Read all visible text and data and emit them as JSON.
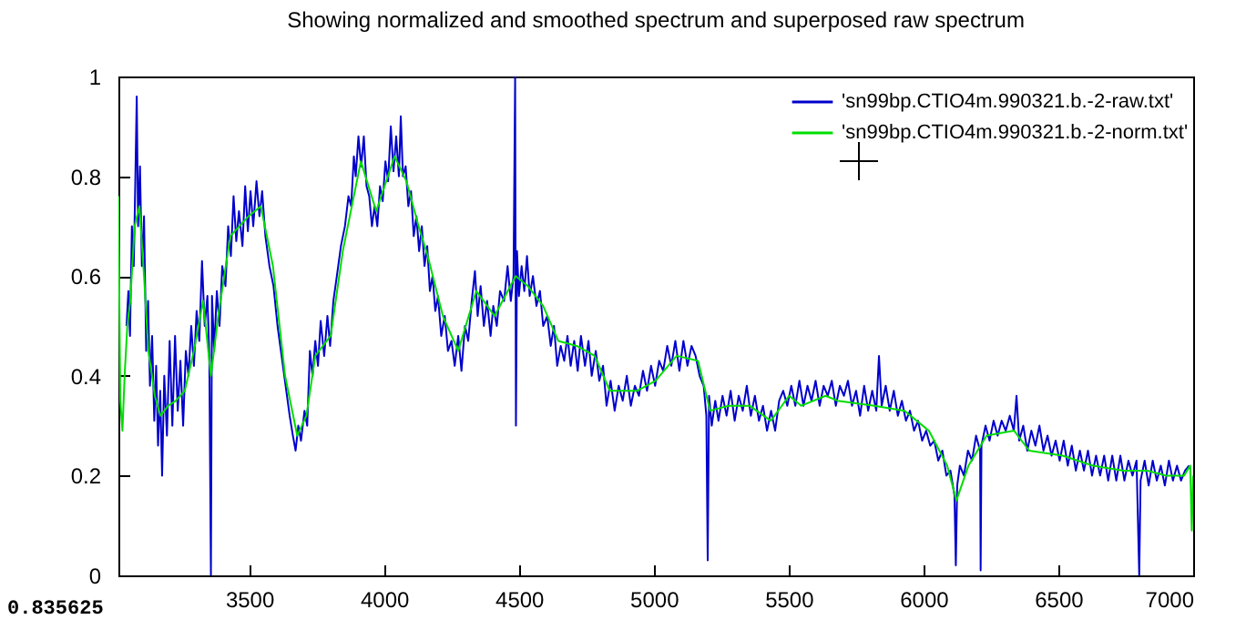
{
  "chart_data": {
    "type": "line",
    "title": "Showing normalized and smoothed spectrum and superposed raw spectrum",
    "xlim": [
      3015,
      7000
    ],
    "xticks": [
      3500,
      4000,
      4500,
      5000,
      5500,
      6000,
      6500,
      7000
    ],
    "ylim": [
      0,
      1
    ],
    "yticks": [
      0,
      0.2,
      0.4,
      0.6,
      0.8,
      1
    ],
    "grid": false,
    "legend": "top right",
    "annotations": [
      "0.835625"
    ],
    "series": [
      {
        "name": "'sn99bp.CTIO4m.990321.b.-2-raw.txt'",
        "color": "#0000cc",
        "x": [
          3045,
          3052,
          3058,
          3065,
          3072,
          3078,
          3083,
          3088,
          3095,
          3102,
          3110,
          3118,
          3125,
          3132,
          3140,
          3148,
          3155,
          3162,
          3170,
          3177,
          3185,
          3195,
          3205,
          3215,
          3225,
          3235,
          3245,
          3255,
          3265,
          3275,
          3285,
          3295,
          3305,
          3315,
          3325,
          3335,
          3345,
          3352,
          3358,
          3362,
          3370,
          3380,
          3390,
          3400,
          3412,
          3422,
          3432,
          3442,
          3452,
          3462,
          3475,
          3485,
          3495,
          3505,
          3515,
          3527,
          3538,
          3548,
          3560,
          3575,
          3590,
          3605,
          3620,
          3635,
          3650,
          3662,
          3672,
          3682,
          3692,
          3705,
          3715,
          3725,
          3735,
          3745,
          3755,
          3765,
          3778,
          3790,
          3800,
          3812,
          3825,
          3840,
          3855,
          3868,
          3878,
          3888,
          3895,
          3905,
          3915,
          3925,
          3935,
          3945,
          3955,
          3965,
          3975,
          3985,
          3995,
          4005,
          4015,
          4025,
          4035,
          4045,
          4055,
          4062,
          4070,
          4080,
          4090,
          4100,
          4110,
          4120,
          4130,
          4140,
          4150,
          4160,
          4170,
          4180,
          4190,
          4200,
          4212,
          4225,
          4237,
          4250,
          4262,
          4275,
          4287,
          4300,
          4312,
          4325,
          4337,
          4347,
          4358,
          4370,
          4382,
          4395,
          4405,
          4418,
          4430,
          4445,
          4458,
          4470,
          4480,
          4486,
          4489,
          4493,
          4500,
          4510,
          4520,
          4530,
          4540,
          4552,
          4565,
          4578,
          4590,
          4605,
          4618,
          4630,
          4642,
          4655,
          4668,
          4680,
          4692,
          4705,
          4718,
          4730,
          4745,
          4758,
          4770,
          4785,
          4798,
          4812,
          4825,
          4840,
          4855,
          4870,
          4885,
          4900,
          4915,
          4930,
          4945,
          4960,
          4975,
          4990,
          5005,
          5020,
          5035,
          5050,
          5065,
          5080,
          5095,
          5110,
          5125,
          5140,
          5155,
          5170,
          5185,
          5195,
          5200,
          5205,
          5215,
          5228,
          5240,
          5255,
          5270,
          5285,
          5300,
          5315,
          5330,
          5345,
          5360,
          5375,
          5390,
          5405,
          5420,
          5435,
          5450,
          5465,
          5480,
          5495,
          5510,
          5525,
          5540,
          5555,
          5570,
          5585,
          5600,
          5615,
          5630,
          5645,
          5660,
          5675,
          5690,
          5705,
          5720,
          5735,
          5750,
          5765,
          5780,
          5795,
          5810,
          5825,
          5835,
          5845,
          5860,
          5875,
          5890,
          5905,
          5920,
          5935,
          5950,
          5965,
          5980,
          5995,
          6010,
          6025,
          6040,
          6055,
          6070,
          6085,
          6100,
          6115,
          6120,
          6125,
          6135,
          6150,
          6165,
          6180,
          6195,
          6210,
          6212,
          6215,
          6230,
          6245,
          6260,
          6275,
          6290,
          6305,
          6320,
          6335,
          6345,
          6355,
          6370,
          6385,
          6400,
          6415,
          6430,
          6445,
          6460,
          6475,
          6490,
          6505,
          6520,
          6535,
          6550,
          6565,
          6580,
          6595,
          6610,
          6625,
          6640,
          6655,
          6670,
          6685,
          6700,
          6715,
          6730,
          6745,
          6760,
          6775,
          6790,
          6800,
          6805,
          6820,
          6835,
          6850,
          6865,
          6880,
          6895,
          6910,
          6925,
          6940,
          6955,
          6970,
          6985
        ],
        "values": [
          0.5,
          0.57,
          0.48,
          0.7,
          0.62,
          0.8,
          0.96,
          0.7,
          0.82,
          0.62,
          0.72,
          0.45,
          0.55,
          0.38,
          0.48,
          0.31,
          0.42,
          0.26,
          0.37,
          0.2,
          0.4,
          0.28,
          0.47,
          0.3,
          0.48,
          0.33,
          0.43,
          0.3,
          0.45,
          0.4,
          0.5,
          0.42,
          0.53,
          0.47,
          0.63,
          0.5,
          0.56,
          0.44,
          0.0,
          0.56,
          0.45,
          0.57,
          0.5,
          0.62,
          0.58,
          0.7,
          0.64,
          0.76,
          0.67,
          0.73,
          0.66,
          0.78,
          0.69,
          0.77,
          0.7,
          0.79,
          0.72,
          0.77,
          0.68,
          0.62,
          0.58,
          0.5,
          0.44,
          0.38,
          0.32,
          0.28,
          0.25,
          0.3,
          0.27,
          0.33,
          0.3,
          0.45,
          0.4,
          0.47,
          0.42,
          0.51,
          0.44,
          0.52,
          0.46,
          0.55,
          0.6,
          0.66,
          0.7,
          0.76,
          0.74,
          0.84,
          0.8,
          0.88,
          0.82,
          0.88,
          0.78,
          0.76,
          0.7,
          0.74,
          0.7,
          0.78,
          0.75,
          0.83,
          0.79,
          0.9,
          0.81,
          0.88,
          0.8,
          0.92,
          0.8,
          0.82,
          0.74,
          0.77,
          0.68,
          0.72,
          0.65,
          0.7,
          0.62,
          0.66,
          0.57,
          0.6,
          0.53,
          0.56,
          0.48,
          0.52,
          0.45,
          0.47,
          0.42,
          0.48,
          0.41,
          0.5,
          0.47,
          0.55,
          0.61,
          0.52,
          0.58,
          0.5,
          0.55,
          0.48,
          0.54,
          0.5,
          0.57,
          0.55,
          0.62,
          0.55,
          0.6,
          1.0,
          0.3,
          0.65,
          0.56,
          0.62,
          0.57,
          0.64,
          0.56,
          0.6,
          0.54,
          0.57,
          0.5,
          0.52,
          0.46,
          0.5,
          0.42,
          0.46,
          0.43,
          0.48,
          0.42,
          0.47,
          0.41,
          0.48,
          0.42,
          0.47,
          0.4,
          0.45,
          0.39,
          0.42,
          0.34,
          0.39,
          0.33,
          0.38,
          0.35,
          0.4,
          0.34,
          0.38,
          0.36,
          0.41,
          0.37,
          0.42,
          0.38,
          0.43,
          0.41,
          0.46,
          0.42,
          0.47,
          0.41,
          0.47,
          0.42,
          0.46,
          0.44,
          0.4,
          0.38,
          0.32,
          0.03,
          0.36,
          0.3,
          0.35,
          0.31,
          0.36,
          0.32,
          0.37,
          0.31,
          0.36,
          0.33,
          0.38,
          0.32,
          0.36,
          0.31,
          0.34,
          0.29,
          0.33,
          0.29,
          0.35,
          0.37,
          0.34,
          0.38,
          0.34,
          0.39,
          0.34,
          0.38,
          0.35,
          0.39,
          0.34,
          0.38,
          0.36,
          0.39,
          0.34,
          0.38,
          0.36,
          0.39,
          0.34,
          0.37,
          0.32,
          0.38,
          0.33,
          0.37,
          0.33,
          0.44,
          0.34,
          0.38,
          0.33,
          0.37,
          0.32,
          0.35,
          0.31,
          0.33,
          0.29,
          0.31,
          0.27,
          0.29,
          0.26,
          0.27,
          0.23,
          0.25,
          0.2,
          0.21,
          0.16,
          0.02,
          0.18,
          0.22,
          0.2,
          0.25,
          0.23,
          0.28,
          0.25,
          0.01,
          0.26,
          0.3,
          0.27,
          0.31,
          0.28,
          0.31,
          0.29,
          0.32,
          0.29,
          0.36,
          0.27,
          0.3,
          0.25,
          0.29,
          0.26,
          0.3,
          0.25,
          0.28,
          0.24,
          0.27,
          0.23,
          0.27,
          0.22,
          0.26,
          0.21,
          0.25,
          0.21,
          0.25,
          0.2,
          0.24,
          0.2,
          0.24,
          0.19,
          0.24,
          0.19,
          0.24,
          0.19,
          0.23,
          0.2,
          0.23,
          0.0,
          0.19,
          0.23,
          0.18,
          0.23,
          0.19,
          0.22,
          0.18,
          0.23,
          0.19,
          0.22,
          0.19,
          0.21,
          0.22
        ]
      },
      {
        "name": "'sn99bp.CTIO4m.990321.b.-2-norm.txt'",
        "color": "#00dd00",
        "x": [
          3015,
          3022,
          3030,
          3038,
          3048,
          3059,
          3075,
          3093,
          3110,
          3126,
          3150,
          3171,
          3200,
          3228,
          3261,
          3295,
          3329,
          3358,
          3385,
          3430,
          3498,
          3543,
          3588,
          3633,
          3678,
          3712,
          3745,
          3802,
          3847,
          3914,
          3971,
          4039,
          4083,
          4128,
          4162,
          4218,
          4275,
          4342,
          4410,
          4488,
          4533,
          4590,
          4646,
          4714,
          4781,
          4837,
          4939,
          5006,
          5085,
          5164,
          5209,
          5277,
          5355,
          5434,
          5502,
          5547,
          5637,
          5682,
          5818,
          5930,
          6020,
          6088,
          6122,
          6167,
          6234,
          6336,
          6392,
          6516,
          6628,
          6741,
          6831,
          6899,
          6966,
          6989,
          6995,
          7000
        ],
        "values": [
          0.76,
          0.35,
          0.29,
          0.4,
          0.5,
          0.55,
          0.7,
          0.74,
          0.6,
          0.45,
          0.36,
          0.32,
          0.34,
          0.35,
          0.37,
          0.45,
          0.55,
          0.4,
          0.52,
          0.68,
          0.72,
          0.74,
          0.62,
          0.4,
          0.28,
          0.32,
          0.44,
          0.48,
          0.65,
          0.83,
          0.73,
          0.84,
          0.79,
          0.7,
          0.64,
          0.52,
          0.45,
          0.57,
          0.52,
          0.6,
          0.58,
          0.54,
          0.47,
          0.46,
          0.44,
          0.37,
          0.37,
          0.39,
          0.44,
          0.43,
          0.33,
          0.34,
          0.34,
          0.31,
          0.36,
          0.34,
          0.36,
          0.35,
          0.34,
          0.33,
          0.29,
          0.22,
          0.15,
          0.22,
          0.28,
          0.29,
          0.25,
          0.24,
          0.22,
          0.21,
          0.21,
          0.2,
          0.2,
          0.22,
          0.09,
          0.2
        ]
      }
    ]
  }
}
